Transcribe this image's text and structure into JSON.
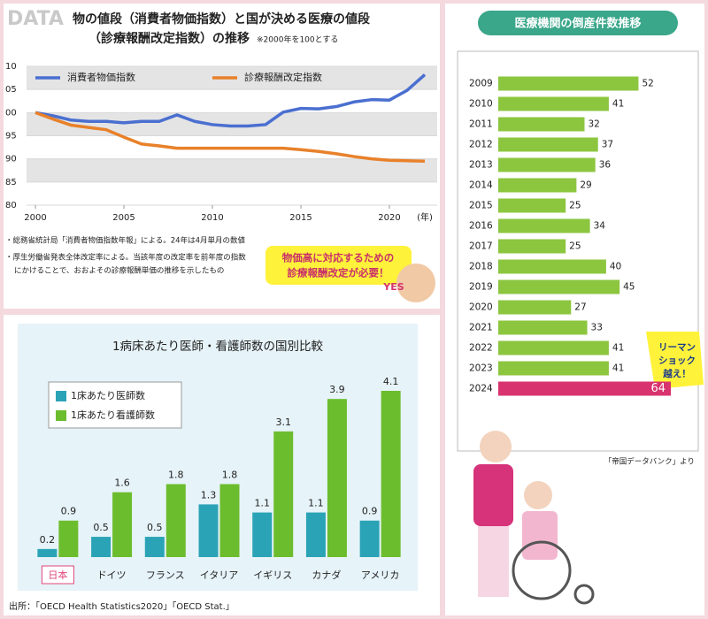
{
  "chart_data": [
    {
      "type": "line",
      "label": "DATA",
      "title_lines": [
        "物の値段（消費者物価指数）と国が決める医療の値段",
        "（診療報酬改定指数）の推移"
      ],
      "note": "※2000年を100とする",
      "x": [
        2000,
        2001,
        2002,
        2003,
        2004,
        2005,
        2006,
        2007,
        2008,
        2009,
        2010,
        2011,
        2012,
        2013,
        2014,
        2015,
        2016,
        2017,
        2018,
        2019,
        2020,
        2021,
        2022
      ],
      "xlim": [
        1999.5,
        2022.7
      ],
      "xticks": [
        2000,
        2005,
        2010,
        2015,
        2020
      ],
      "x_unit": "(年)",
      "ylim": [
        80,
        110
      ],
      "yticks": [
        80,
        85,
        90,
        95,
        {
          "value": 100,
          "label": "00"
        },
        {
          "value": 105,
          "label": "05"
        },
        {
          "value": 110,
          "label": "10"
        }
      ],
      "series": [
        {
          "name": "消費者物価指数",
          "color": "#4a6fd0",
          "values": [
            100,
            99.3,
            98.4,
            98.1,
            98.1,
            97.8,
            98.1,
            98.1,
            99.5,
            98.1,
            97.4,
            97.1,
            97.1,
            97.4,
            100.1,
            100.9,
            100.8,
            101.3,
            102.3,
            102.8,
            102.7,
            104.8,
            108.2
          ]
        },
        {
          "name": "診療報酬改定指数",
          "color": "#e8812a",
          "values": [
            100,
            98.6,
            97.3,
            96.8,
            96.3,
            94.7,
            93.2,
            92.8,
            92.3,
            92.3,
            92.3,
            92.3,
            92.3,
            92.3,
            92.3,
            92.0,
            91.6,
            91.1,
            90.5,
            90.0,
            89.7,
            89.6,
            89.5
          ]
        }
      ],
      "grid": true,
      "footnotes": [
        "・総務省統計局「消費者物価指数年報」による。24年は4月単月の数値",
        "・厚生労働省発表全体改定率による。当該年度の改定率を前年度の指数",
        "にかけることで、おおよその診療報酬単価の推移を示したもの"
      ],
      "callout": [
        "物価高に対応するための",
        "診療報酬改定が必要！"
      ],
      "badge": "YES"
    },
    {
      "type": "bar",
      "title": "1病床あたり医師・看護師数の国別比較",
      "categories": [
        "日本",
        "ドイツ",
        "フランス",
        "イタリア",
        "イギリス",
        "カナダ",
        "アメリカ"
      ],
      "series": [
        {
          "name": "1床あたり医師数",
          "color": "#2ba3b6",
          "values": [
            0.2,
            0.5,
            0.5,
            1.3,
            1.1,
            1.1,
            0.9
          ]
        },
        {
          "name": "1床あたり看護師数",
          "color": "#6cbd2e",
          "values": [
            0.9,
            1.6,
            1.8,
            1.8,
            3.1,
            3.9,
            4.1
          ]
        }
      ],
      "source": "出所：「OECD Health Statistics2020」「OECD Stat.」"
    },
    {
      "type": "hbar",
      "title": "医療機関の倒産件数推移",
      "categories": [
        "2009",
        "2010",
        "2011",
        "2012",
        "2013",
        "2014",
        "2015",
        "2016",
        "2017",
        "2018",
        "2019",
        "2020",
        "2021",
        "2022",
        "2023",
        "2024"
      ],
      "values": [
        52,
        41,
        32,
        37,
        36,
        29,
        25,
        34,
        25,
        40,
        45,
        27,
        33,
        41,
        41,
        64
      ],
      "colors": [
        "#8cc63f",
        "#8cc63f",
        "#8cc63f",
        "#8cc63f",
        "#8cc63f",
        "#8cc63f",
        "#8cc63f",
        "#8cc63f",
        "#8cc63f",
        "#8cc63f",
        "#8cc63f",
        "#8cc63f",
        "#8cc63f",
        "#8cc63f",
        "#8cc63f",
        "#d8336e"
      ],
      "callout": [
        "リーマン",
        "ショック",
        "越え！"
      ],
      "source": "「帝国データバンク」より"
    }
  ]
}
